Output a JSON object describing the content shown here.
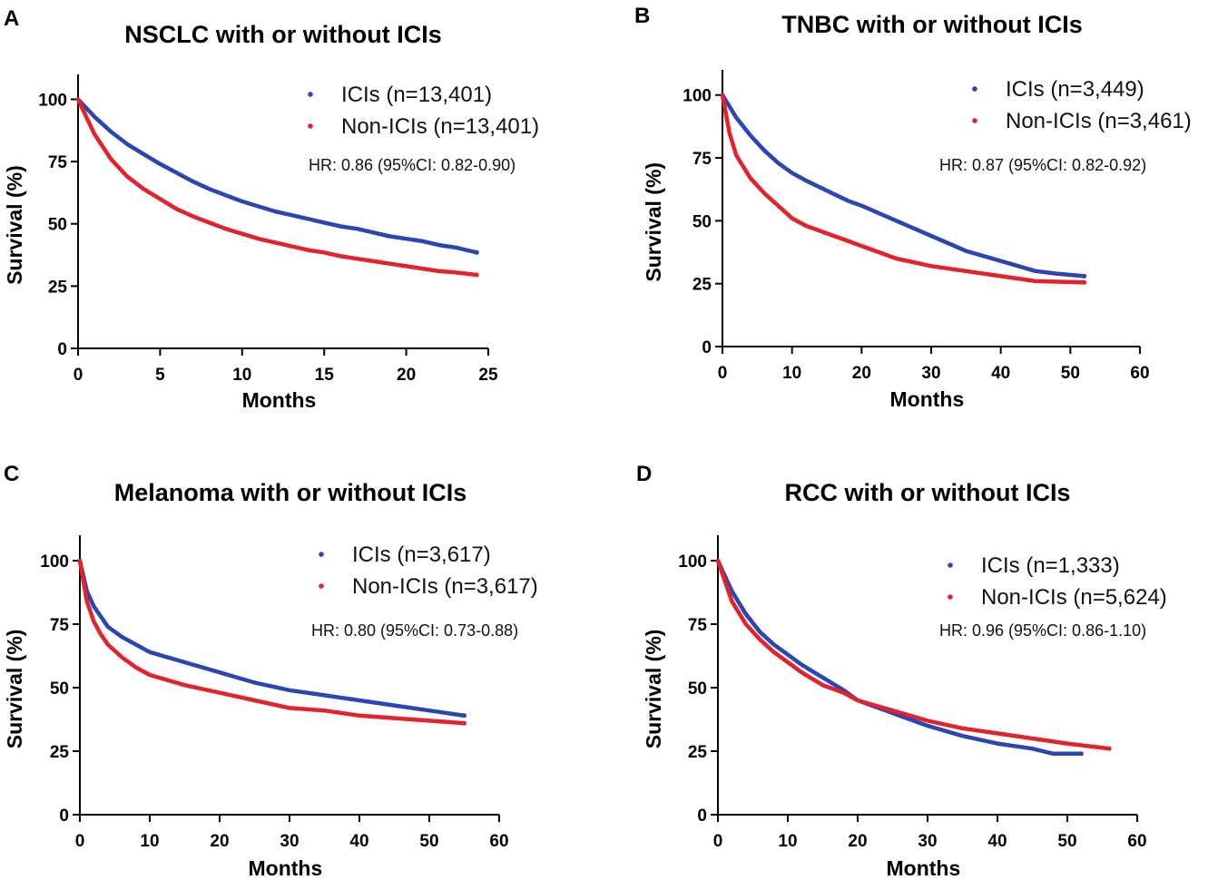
{
  "figure": {
    "panels": [
      "A",
      "B",
      "C",
      "D"
    ]
  },
  "colors": {
    "ici": "#2a45b4",
    "non_ici": "#e5212a",
    "axis": "#000000"
  },
  "chart_data": [
    {
      "panel": "A",
      "type": "line",
      "title": "NSCLC with or without ICIs",
      "xlabel": "Months",
      "ylabel": "Survival (%)",
      "xlim": [
        0,
        25
      ],
      "ylim": [
        0,
        110
      ],
      "xticks": [
        0,
        5,
        10,
        15,
        20,
        25
      ],
      "yticks": [
        0,
        25,
        50,
        75,
        100
      ],
      "legend_position": "top-right",
      "hr_text": "HR:  0.86 (95%CI:  0.82-0.90)",
      "series": [
        {
          "name": "ICIs (n=13,401)",
          "color": "#2a45b4",
          "x": [
            0,
            1,
            2,
            3,
            4,
            5,
            6,
            7,
            8,
            9,
            10,
            11,
            12,
            13,
            14,
            15,
            16,
            17,
            18,
            19,
            20,
            21,
            22,
            23,
            24.3
          ],
          "y": [
            100,
            93,
            87,
            82,
            78,
            74,
            70.5,
            67,
            64,
            61.5,
            59,
            57,
            55,
            53.5,
            52,
            50.5,
            49,
            48,
            46.5,
            45,
            44,
            43,
            41.5,
            40.5,
            38.5
          ]
        },
        {
          "name": "Non-ICIs (n=13,401)",
          "color": "#e5212a",
          "x": [
            0,
            1,
            2,
            3,
            4,
            5,
            6,
            7,
            8,
            9,
            10,
            11,
            12,
            13,
            14,
            15,
            16,
            17,
            18,
            19,
            20,
            21,
            22,
            23,
            24.3
          ],
          "y": [
            100,
            86,
            76,
            69,
            64,
            60,
            56,
            53,
            50.5,
            48,
            46,
            44,
            42.5,
            41,
            39.5,
            38.5,
            37,
            36,
            35,
            34,
            33,
            32,
            31,
            30.5,
            29.5
          ]
        }
      ]
    },
    {
      "panel": "B",
      "type": "line",
      "title": "TNBC with or without ICIs",
      "xlabel": "Months",
      "ylabel": "Survival (%)",
      "xlim": [
        0,
        60
      ],
      "ylim": [
        0,
        110
      ],
      "xticks": [
        0,
        10,
        20,
        30,
        40,
        50,
        60
      ],
      "yticks": [
        0,
        25,
        50,
        75,
        100
      ],
      "legend_position": "top-right",
      "hr_text": "HR:  0.87 (95%CI:  0.82-0.92)",
      "series": [
        {
          "name": "ICIs (n=3,449)",
          "color": "#2a45b4",
          "x": [
            0,
            2,
            4,
            6,
            8,
            10,
            12,
            15,
            18,
            20,
            25,
            30,
            35,
            40,
            45,
            48,
            52
          ],
          "y": [
            100,
            91,
            84,
            78,
            73,
            69,
            66,
            62,
            58,
            56,
            50,
            44,
            38,
            34,
            30,
            29,
            28
          ]
        },
        {
          "name": "Non-ICIs (n=3,461)",
          "color": "#e5212a",
          "x": [
            0,
            1,
            2,
            4,
            6,
            8,
            10,
            12,
            15,
            18,
            20,
            25,
            30,
            35,
            40,
            45,
            52
          ],
          "y": [
            100,
            85,
            76,
            67,
            61,
            56,
            51,
            48,
            45,
            42,
            40,
            35,
            32,
            30,
            28,
            26,
            25.5
          ]
        }
      ]
    },
    {
      "panel": "C",
      "type": "line",
      "title": "Melanoma with or without ICIs",
      "xlabel": "Months",
      "ylabel": "Survival (%)",
      "xlim": [
        0,
        60
      ],
      "ylim": [
        0,
        110
      ],
      "xticks": [
        0,
        10,
        20,
        30,
        40,
        50,
        60
      ],
      "yticks": [
        0,
        25,
        50,
        75,
        100
      ],
      "legend_position": "top-right",
      "hr_text": "HR:  0.80 (95%CI:  0.73-0.88)",
      "series": [
        {
          "name": "ICIs (n=3,617)",
          "color": "#2a45b4",
          "x": [
            0,
            1,
            2,
            3,
            4,
            6,
            8,
            10,
            15,
            20,
            25,
            30,
            35,
            40,
            45,
            50,
            55
          ],
          "y": [
            100,
            88,
            82,
            78,
            74,
            70,
            67,
            64,
            60,
            56,
            52,
            49,
            47,
            45,
            43,
            41,
            39
          ]
        },
        {
          "name": "Non-ICIs (n=3,617)",
          "color": "#e5212a",
          "x": [
            0,
            1,
            2,
            3,
            4,
            6,
            8,
            10,
            15,
            20,
            25,
            30,
            35,
            40,
            45,
            50,
            55
          ],
          "y": [
            100,
            84,
            76,
            71,
            67,
            62,
            58,
            55,
            51,
            48,
            45,
            42,
            41,
            39,
            38,
            37,
            36
          ]
        }
      ]
    },
    {
      "panel": "D",
      "type": "line",
      "title": "RCC with or without ICIs",
      "xlabel": "Months",
      "ylabel": "Survival (%)",
      "xlim": [
        0,
        60
      ],
      "ylim": [
        0,
        110
      ],
      "xticks": [
        0,
        10,
        20,
        30,
        40,
        50,
        60
      ],
      "yticks": [
        0,
        25,
        50,
        75,
        100
      ],
      "legend_position": "top-right",
      "hr_text": "HR:  0.96 (95%CI:  0.86-1.10)",
      "series": [
        {
          "name": "ICIs (n=1,333)",
          "color": "#2a45b4",
          "x": [
            0,
            2,
            4,
            6,
            8,
            10,
            12,
            15,
            18,
            20,
            25,
            30,
            35,
            40,
            45,
            48,
            52
          ],
          "y": [
            100,
            88,
            79,
            72,
            67,
            63,
            59,
            54,
            49,
            45,
            40,
            35,
            31,
            28,
            26,
            24,
            24
          ]
        },
        {
          "name": "Non-ICIs (n=5,624)",
          "color": "#e5212a",
          "x": [
            0,
            2,
            4,
            6,
            8,
            10,
            12,
            15,
            18,
            20,
            25,
            30,
            35,
            40,
            45,
            50,
            56
          ],
          "y": [
            100,
            84,
            75,
            69,
            64,
            60,
            56,
            51,
            48,
            45,
            41,
            37,
            34,
            32,
            30,
            28,
            26
          ]
        }
      ]
    }
  ]
}
